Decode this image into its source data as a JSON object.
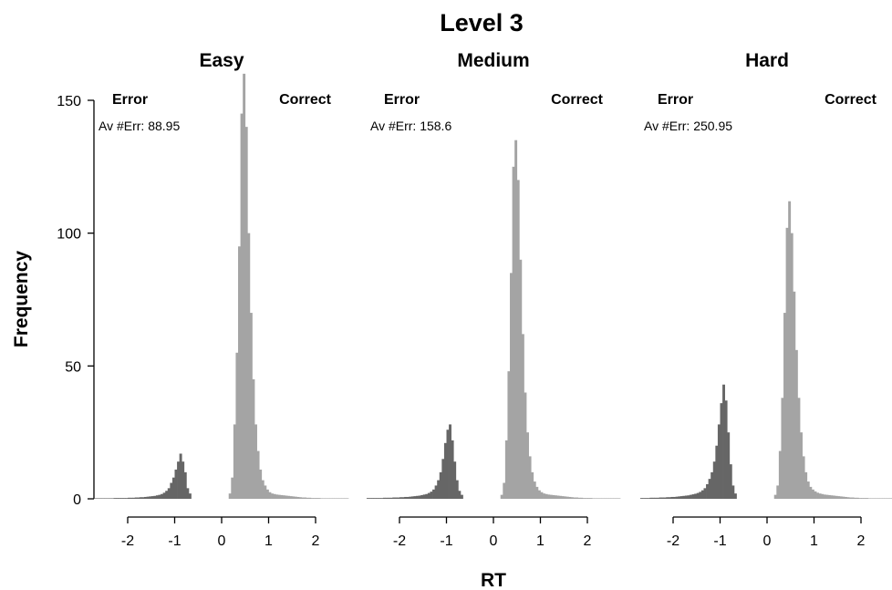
{
  "chart_data": {
    "type": "bar",
    "title": "Level 3",
    "xlabel": "RT",
    "ylabel": "Frequency",
    "xlim": [
      -2.7,
      2.7
    ],
    "ylim": [
      0,
      160
    ],
    "xticks": [
      -2,
      -1,
      0,
      1,
      2
    ],
    "yticks": [
      0,
      50,
      100,
      150
    ],
    "bin_width": 0.05,
    "colors": {
      "error": "#666666",
      "correct": "#a4a4a4"
    },
    "panels": [
      {
        "name": "Easy",
        "error_label": "Error",
        "correct_label": "Correct",
        "annotation": "Av #Err: 88.95",
        "series": [
          {
            "name": "Error",
            "x_start": -2.7,
            "values": [
              0.2,
              0.2,
              0.2,
              0.2,
              0.2,
              0.2,
              0.2,
              0.2,
              0.3,
              0.3,
              0.3,
              0.3,
              0.3,
              0.3,
              0.4,
              0.4,
              0.4,
              0.5,
              0.5,
              0.6,
              0.6,
              0.7,
              0.8,
              0.9,
              1.0,
              1.1,
              1.3,
              1.5,
              1.8,
              2.3,
              3,
              4,
              6,
              8,
              11,
              14,
              17,
              14,
              10,
              4,
              2
            ]
          },
          {
            "name": "Correct",
            "x_start": 0.15,
            "values": [
              2,
              8,
              28,
              55,
              95,
              145,
              160,
              140,
              100,
              70,
              45,
              28,
              18,
              11,
              7,
              5,
              3.5,
              2.5,
              2,
              1.8,
              1.6,
              1.5,
              1.4,
              1.3,
              1.2,
              1.1,
              1.0,
              0.9,
              0.8,
              0.7,
              0.6,
              0.5,
              0.5,
              0.4,
              0.4,
              0.3,
              0.3,
              0.3,
              0.3,
              0.2,
              0.2,
              0.2,
              0.2,
              0.2,
              0.2,
              0.2,
              0.2,
              0.2,
              0.2,
              0.2,
              0.2
            ]
          }
        ]
      },
      {
        "name": "Medium",
        "error_label": "Error",
        "correct_label": "Correct",
        "annotation": "Av #Err: 158.6",
        "series": [
          {
            "name": "Error",
            "x_start": -2.7,
            "values": [
              0.3,
              0.3,
              0.3,
              0.3,
              0.3,
              0.3,
              0.3,
              0.4,
              0.4,
              0.4,
              0.4,
              0.5,
              0.5,
              0.5,
              0.6,
              0.6,
              0.7,
              0.7,
              0.8,
              0.9,
              1.0,
              1.1,
              1.2,
              1.4,
              1.6,
              1.8,
              2.2,
              2.7,
              3.5,
              5,
              7,
              10,
              15,
              21,
              26,
              28,
              22,
              14,
              7,
              3,
              1.5
            ]
          },
          {
            "name": "Correct",
            "x_start": 0.15,
            "values": [
              1.5,
              6,
              22,
              48,
              85,
              125,
              135,
              120,
              90,
              62,
              40,
              25,
              16,
              10,
              6.5,
              4.5,
              3.2,
              2.5,
              2,
              1.8,
              1.6,
              1.5,
              1.4,
              1.3,
              1.2,
              1.1,
              1.0,
              0.9,
              0.8,
              0.7,
              0.6,
              0.5,
              0.5,
              0.4,
              0.4,
              0.3,
              0.3,
              0.3,
              0.3,
              0.2,
              0.2,
              0.2,
              0.2,
              0.2,
              0.2,
              0.2,
              0.2,
              0.2,
              0.2,
              0.2,
              0.2
            ]
          }
        ]
      },
      {
        "name": "Hard",
        "error_label": "Error",
        "correct_label": "Correct",
        "annotation": "Av #Err: 250.95",
        "series": [
          {
            "name": "Error",
            "x_start": -2.7,
            "values": [
              0.3,
              0.3,
              0.3,
              0.3,
              0.4,
              0.4,
              0.4,
              0.4,
              0.5,
              0.5,
              0.5,
              0.6,
              0.6,
              0.7,
              0.7,
              0.8,
              0.9,
              1.0,
              1.1,
              1.2,
              1.3,
              1.5,
              1.7,
              1.9,
              2.2,
              2.6,
              3.2,
              4,
              5.5,
              7.5,
              10,
              14,
              20,
              28,
              36,
              43,
              37,
              25,
              13,
              5,
              2
            ]
          },
          {
            "name": "Correct",
            "x_start": 0.15,
            "values": [
              1.5,
              5,
              18,
              38,
              70,
              102,
              112,
              100,
              78,
              56,
              38,
              25,
              16,
              10,
              6.5,
              4.5,
              3.5,
              2.8,
              2.3,
              2,
              1.8,
              1.6,
              1.5,
              1.4,
              1.3,
              1.2,
              1.1,
              1.0,
              0.9,
              0.8,
              0.7,
              0.6,
              0.5,
              0.5,
              0.4,
              0.4,
              0.3,
              0.3,
              0.3,
              0.3,
              0.2,
              0.2,
              0.2,
              0.2,
              0.2,
              0.2,
              0.2,
              0.2,
              0.2,
              0.2,
              0.2
            ]
          }
        ]
      }
    ]
  }
}
